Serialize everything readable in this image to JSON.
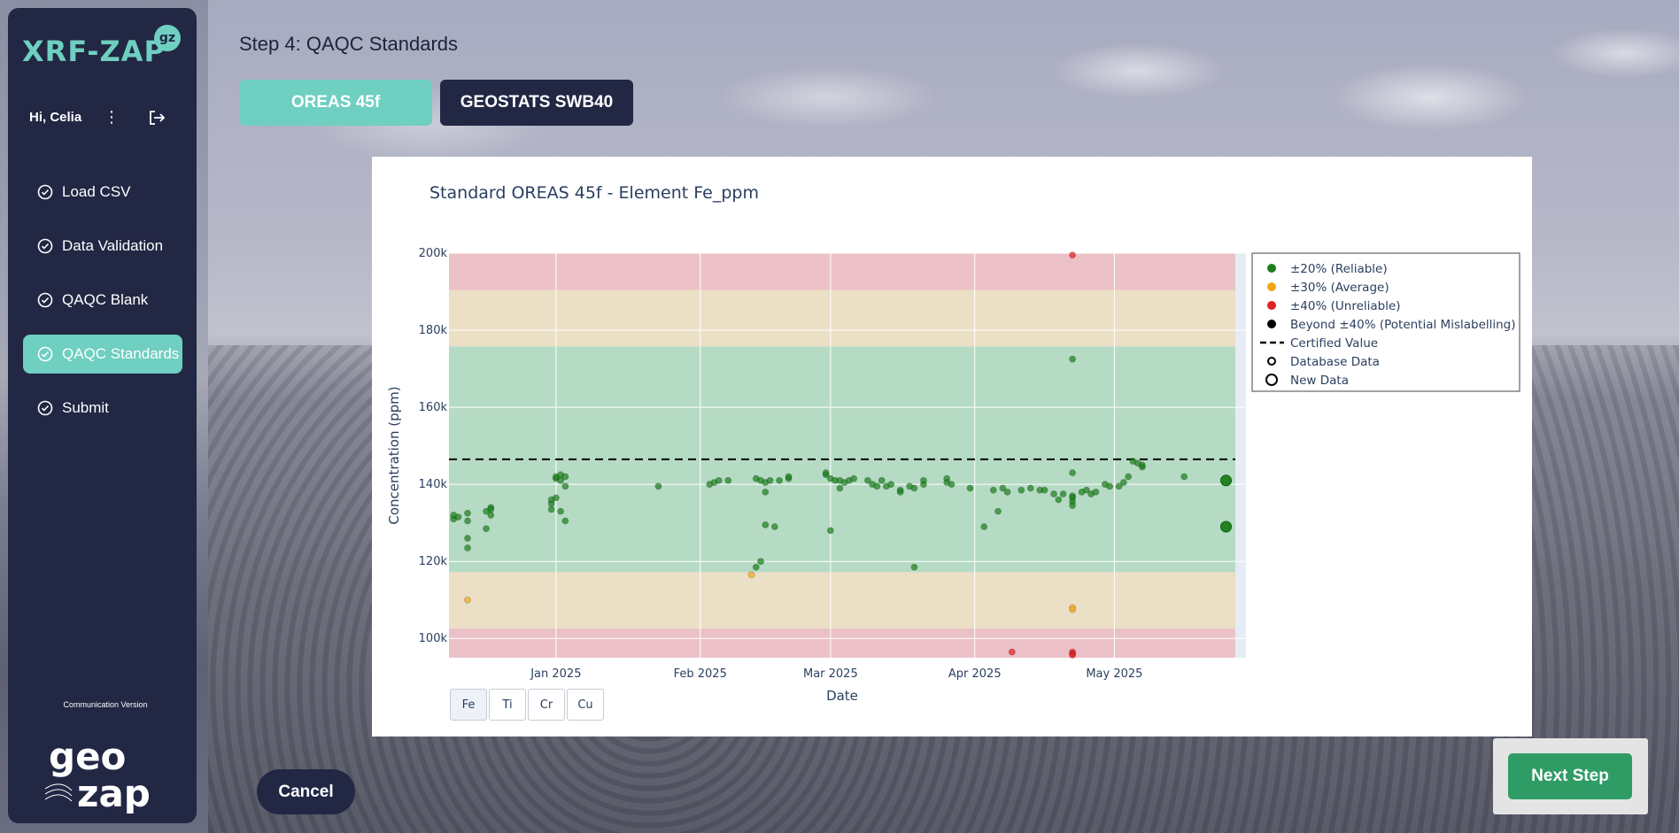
{
  "app": {
    "brand": "XRF-ZAP",
    "badge": "gz",
    "greeting": "Hi, Celia",
    "communication_version": "Communication Version",
    "footer_logo_text": "geo zap"
  },
  "sidebar": {
    "items": [
      {
        "label": "Load CSV",
        "active": false
      },
      {
        "label": "Data Validation",
        "active": false
      },
      {
        "label": "QAQC Blank",
        "active": false
      },
      {
        "label": "QAQC Standards",
        "active": true
      },
      {
        "label": "Submit",
        "active": false
      }
    ]
  },
  "header": {
    "step_title": "Step 4: QAQC Standards",
    "tabs": [
      {
        "label": "OREAS 45f",
        "active": true
      },
      {
        "label": "GEOSTATS SWB40",
        "active": false
      }
    ]
  },
  "element_buttons": [
    {
      "label": "Fe",
      "active": true
    },
    {
      "label": "Ti",
      "active": false
    },
    {
      "label": "Cr",
      "active": false
    },
    {
      "label": "Cu",
      "active": false
    }
  ],
  "buttons": {
    "cancel": "Cancel",
    "next": "Next Step"
  },
  "colors": {
    "sidebar_bg": "#222744",
    "accent": "#6fcfc0",
    "next_green": "#2f9c66",
    "reliable": "#1a7f1a",
    "average": "#f0a81a",
    "unreliable": "#e02020",
    "band_green": "#b6dbc4",
    "band_tan": "#ebdfc6",
    "band_red": "#ebc1c7"
  },
  "chart_data": {
    "type": "scatter",
    "title": "Standard OREAS 45f - Element Fe_ppm",
    "xlabel": "Date",
    "ylabel": "Concentration (ppm)",
    "ylim": [
      95000,
      200000
    ],
    "xlim": [
      "2024-12-09",
      "2025-05-27"
    ],
    "x_ticks": [
      "2025-01-01",
      "2025-02-01",
      "2025-03-01",
      "2025-04-01",
      "2025-05-01"
    ],
    "x_tick_labels": [
      "Jan 2025",
      "Feb 2025",
      "Mar 2025",
      "Apr 2025",
      "May 2025"
    ],
    "y_ticks": [
      100000,
      120000,
      140000,
      160000,
      180000,
      200000
    ],
    "y_tick_labels": [
      "100k",
      "120k",
      "140k",
      "160k",
      "180k",
      "200k"
    ],
    "certified_value": 146500,
    "bands": [
      {
        "from": 176000,
        "to": 200000,
        "kind": "tan-red"
      },
      {
        "from": 117200,
        "to": 176000,
        "kind": "green"
      }
    ],
    "legend": [
      {
        "label": "±20% (Reliable)",
        "symbol": "dot",
        "color": "#1a7f1a"
      },
      {
        "label": "±30% (Average)",
        "symbol": "dot",
        "color": "#f0a81a"
      },
      {
        "label": "±40% (Unreliable)",
        "symbol": "dot",
        "color": "#e02020"
      },
      {
        "label": "Beyond ±40% (Potential Mislabelling)",
        "symbol": "dot",
        "color": "#000000"
      },
      {
        "label": "Certified Value",
        "symbol": "dash",
        "color": "#000000"
      },
      {
        "label": "Database Data",
        "symbol": "ring-small",
        "color": "#000000"
      },
      {
        "label": "New Data",
        "symbol": "ring-large",
        "color": "#000000"
      }
    ],
    "legend_position": "right",
    "grid": true,
    "series": [
      {
        "name": "Database Data",
        "points": [
          [
            "2024-12-10",
            131000,
            "g"
          ],
          [
            "2024-12-10",
            132000,
            "g"
          ],
          [
            "2024-12-11",
            131500,
            "g"
          ],
          [
            "2024-12-13",
            130500,
            "g"
          ],
          [
            "2024-12-13",
            132500,
            "g"
          ],
          [
            "2024-12-13",
            126000,
            "g"
          ],
          [
            "2024-12-13",
            123500,
            "g"
          ],
          [
            "2024-12-13",
            110000,
            "o"
          ],
          [
            "2024-12-17",
            128500,
            "g"
          ],
          [
            "2024-12-17",
            133000,
            "g"
          ],
          [
            "2024-12-18",
            134000,
            "g"
          ],
          [
            "2024-12-18",
            132000,
            "g"
          ],
          [
            "2024-12-18",
            133500,
            "g"
          ],
          [
            "2024-12-31",
            135000,
            "g"
          ],
          [
            "2024-12-31",
            136000,
            "g"
          ],
          [
            "2024-12-31",
            133500,
            "g"
          ],
          [
            "2025-01-01",
            136500,
            "g"
          ],
          [
            "2025-01-01",
            141500,
            "g"
          ],
          [
            "2025-01-01",
            142000,
            "g"
          ],
          [
            "2025-01-02",
            142500,
            "g"
          ],
          [
            "2025-01-02",
            141000,
            "g"
          ],
          [
            "2025-01-03",
            142000,
            "g"
          ],
          [
            "2025-01-03",
            139500,
            "g"
          ],
          [
            "2025-01-02",
            133000,
            "g"
          ],
          [
            "2025-01-03",
            130500,
            "g"
          ],
          [
            "2025-01-23",
            139500,
            "g"
          ],
          [
            "2025-02-03",
            140000,
            "g"
          ],
          [
            "2025-02-04",
            140500,
            "g"
          ],
          [
            "2025-02-05",
            141000,
            "g"
          ],
          [
            "2025-02-07",
            141000,
            "g"
          ],
          [
            "2025-02-13",
            141500,
            "g"
          ],
          [
            "2025-02-14",
            141000,
            "g"
          ],
          [
            "2025-02-15",
            140500,
            "g"
          ],
          [
            "2025-02-16",
            141000,
            "g"
          ],
          [
            "2025-02-18",
            141000,
            "g"
          ],
          [
            "2025-02-20",
            141500,
            "g"
          ],
          [
            "2025-02-20",
            142000,
            "g"
          ],
          [
            "2025-02-15",
            138000,
            "g"
          ],
          [
            "2025-02-15",
            129500,
            "g"
          ],
          [
            "2025-02-17",
            129000,
            "g"
          ],
          [
            "2025-02-13",
            118500,
            "g"
          ],
          [
            "2025-02-14",
            120000,
            "g"
          ],
          [
            "2025-02-12",
            116500,
            "o"
          ],
          [
            "2025-02-28",
            142500,
            "g"
          ],
          [
            "2025-02-28",
            143000,
            "g"
          ],
          [
            "2025-03-01",
            141500,
            "g"
          ],
          [
            "2025-03-02",
            141000,
            "g"
          ],
          [
            "2025-03-03",
            141000,
            "g"
          ],
          [
            "2025-03-04",
            140500,
            "g"
          ],
          [
            "2025-03-05",
            141000,
            "g"
          ],
          [
            "2025-03-06",
            141500,
            "g"
          ],
          [
            "2025-03-03",
            139000,
            "g"
          ],
          [
            "2025-03-01",
            128000,
            "g"
          ],
          [
            "2025-03-09",
            141000,
            "g"
          ],
          [
            "2025-03-10",
            140000,
            "g"
          ],
          [
            "2025-03-11",
            139500,
            "g"
          ],
          [
            "2025-03-12",
            141000,
            "g"
          ],
          [
            "2025-03-13",
            139500,
            "g"
          ],
          [
            "2025-03-14",
            140000,
            "g"
          ],
          [
            "2025-03-16",
            138500,
            "g"
          ],
          [
            "2025-03-16",
            138000,
            "g"
          ],
          [
            "2025-03-18",
            139500,
            "g"
          ],
          [
            "2025-03-19",
            139000,
            "g"
          ],
          [
            "2025-03-21",
            140000,
            "g"
          ],
          [
            "2025-03-21",
            141000,
            "g"
          ],
          [
            "2025-03-19",
            118500,
            "g"
          ],
          [
            "2025-03-26",
            141500,
            "g"
          ],
          [
            "2025-03-26",
            140500,
            "g"
          ],
          [
            "2025-03-27",
            140000,
            "g"
          ],
          [
            "2025-03-31",
            139000,
            "g"
          ],
          [
            "2025-04-03",
            129000,
            "g"
          ],
          [
            "2025-04-06",
            133000,
            "g"
          ],
          [
            "2025-04-05",
            138500,
            "g"
          ],
          [
            "2025-04-07",
            139000,
            "g"
          ],
          [
            "2025-04-08",
            138000,
            "g"
          ],
          [
            "2025-04-11",
            138500,
            "g"
          ],
          [
            "2025-04-13",
            139000,
            "g"
          ],
          [
            "2025-04-15",
            138500,
            "g"
          ],
          [
            "2025-04-16",
            138500,
            "g"
          ],
          [
            "2025-04-18",
            137500,
            "g"
          ],
          [
            "2025-04-19",
            136000,
            "g"
          ],
          [
            "2025-04-20",
            137500,
            "g"
          ],
          [
            "2025-04-22",
            137000,
            "g"
          ],
          [
            "2025-04-22",
            136500,
            "g"
          ],
          [
            "2025-04-22",
            135500,
            "g"
          ],
          [
            "2025-04-22",
            134500,
            "g"
          ],
          [
            "2025-04-22",
            143000,
            "g"
          ],
          [
            "2025-04-22",
            172500,
            "g"
          ],
          [
            "2025-04-22",
            199500,
            "r"
          ],
          [
            "2025-04-22",
            108000,
            "o"
          ],
          [
            "2025-04-22",
            107500,
            "o"
          ],
          [
            "2025-04-09",
            96500,
            "r"
          ],
          [
            "2025-04-22",
            96500,
            "r"
          ],
          [
            "2025-04-22",
            96000,
            "r"
          ],
          [
            "2025-04-22",
            95500,
            "r"
          ],
          [
            "2025-04-24",
            138000,
            "g"
          ],
          [
            "2025-04-25",
            138500,
            "g"
          ],
          [
            "2025-04-26",
            137500,
            "g"
          ],
          [
            "2025-04-27",
            138000,
            "g"
          ],
          [
            "2025-04-29",
            140000,
            "g"
          ],
          [
            "2025-04-30",
            139500,
            "g"
          ],
          [
            "2025-05-02",
            139500,
            "g"
          ],
          [
            "2025-05-03",
            140500,
            "g"
          ],
          [
            "2025-05-04",
            142000,
            "g"
          ],
          [
            "2025-05-05",
            146000,
            "g"
          ],
          [
            "2025-05-06",
            145500,
            "g"
          ],
          [
            "2025-05-07",
            144500,
            "g"
          ],
          [
            "2025-05-07",
            145000,
            "g"
          ],
          [
            "2025-05-16",
            142000,
            "g"
          ]
        ]
      },
      {
        "name": "New Data",
        "points": [
          [
            "2025-05-25",
            141000,
            "g"
          ],
          [
            "2025-05-25",
            129000,
            "g"
          ]
        ]
      }
    ]
  }
}
